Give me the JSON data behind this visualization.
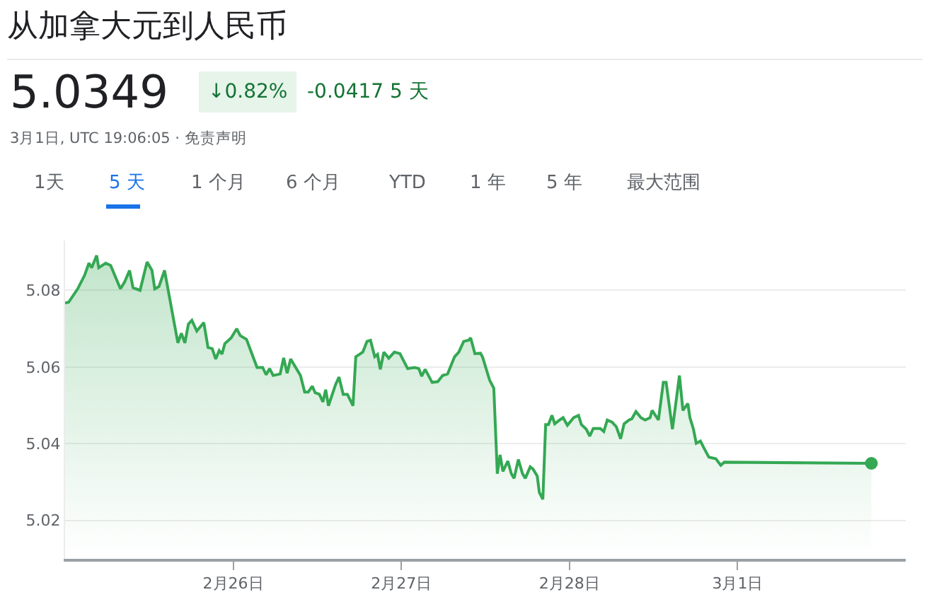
{
  "chart_data": {
    "type": "area",
    "title": "从加拿大元到人民币",
    "annotations": [
      "5.0349",
      "↓0.82%",
      "-0.0417 5 天",
      "3月1日, UTC 19:06:05 · 免责声明",
      "1天",
      "5 天",
      "1 个月",
      "6 个月",
      "YTD",
      "1 年",
      "5 年",
      "最大范围"
    ],
    "x": [
      "--02-25T00:00",
      "--02-25T00:30",
      "--02-25T01:48",
      "--02-25T02:48",
      "--02-25T03:24",
      "--02-25T03:48",
      "--02-25T04:30",
      "--02-25T04:48",
      "--02-25T05:48",
      "--02-25T06:30",
      "--02-25T07:54",
      "--02-25T08:30",
      "--02-25T09:12",
      "--02-25T09:42",
      "--02-25T10:42",
      "--02-25T11:42",
      "--02-25T12:24",
      "--02-25T12:48",
      "--02-25T13:24",
      "--02-25T14:12",
      "--02-25T16:06",
      "--02-25T16:36",
      "--02-25T17:06",
      "--02-25T17:36",
      "--02-25T18:06",
      "--02-25T18:48",
      "--02-25T19:48",
      "--02-25T20:24",
      "--02-25T21:00",
      "--02-25T21:30",
      "--02-25T22:00",
      "--02-25T22:24",
      "--02-25T22:48",
      "--02-25T23:42",
      "--02-26T00:30",
      "--02-26T01:00",
      "--02-26T01:54",
      "--02-26T03:24",
      "--02-26T04:12",
      "--02-26T04:42",
      "--02-26T05:12",
      "--02-26T05:42",
      "--02-26T06:42",
      "--02-26T07:12",
      "--02-26T07:42",
      "--02-26T08:12",
      "--02-26T09:36",
      "--02-26T10:12",
      "--02-26T10:42",
      "--02-26T11:18",
      "--02-26T11:42",
      "--02-26T12:18",
      "--02-26T12:48",
      "--02-26T13:12",
      "--02-26T13:36",
      "--02-26T14:36",
      "--02-26T15:06",
      "--02-26T15:42",
      "--02-26T16:18",
      "--02-26T17:06",
      "--02-26T17:30",
      "--02-26T18:30",
      "--02-26T19:06",
      "--02-26T19:36",
      "--02-26T20:12",
      "--02-26T20:36",
      "--02-26T21:00",
      "--02-26T21:30",
      "--02-26T22:12",
      "--02-26T23:00",
      "--02-26T23:48",
      "--02-27T00:54",
      "--02-27T01:54",
      "--02-27T02:30",
      "--02-27T02:54",
      "--02-27T03:24",
      "--02-27T04:24",
      "--02-27T05:12",
      "--02-27T05:54",
      "--02-27T06:36",
      "--02-27T07:36",
      "--02-27T08:12",
      "--02-27T08:54",
      "--02-27T09:36",
      "--02-27T09:54",
      "--02-27T10:30",
      "--02-27T11:18",
      "--02-27T11:36",
      "--02-27T12:36",
      "--02-27T13:12",
      "--02-27T13:42",
      "--02-27T14:06",
      "--02-27T14:30",
      "--02-27T15:12",
      "--02-27T15:42",
      "--02-27T16:06",
      "--02-27T16:42",
      "--02-27T17:18",
      "--02-27T17:42",
      "--02-27T18:24",
      "--02-27T18:48",
      "--02-27T19:24",
      "--02-27T19:42",
      "--02-27T20:12",
      "--02-27T20:36",
      "--02-27T21:00",
      "--02-27T21:30",
      "--02-27T21:54",
      "--02-27T22:36",
      "--02-27T23:06",
      "--02-27T23:42",
      "--02-28T00:36",
      "--02-28T01:18",
      "--02-28T01:42",
      "--02-28T02:24",
      "--02-28T02:54",
      "--02-28T03:24",
      "--02-28T04:24",
      "--02-28T04:54",
      "--02-28T05:24",
      "--02-28T06:06",
      "--02-28T06:42",
      "--02-28T07:18",
      "--02-28T07:48",
      "--02-28T08:30",
      "--02-28T08:54",
      "--02-28T09:30",
      "--02-28T10:12",
      "--02-28T10:48",
      "--02-28T11:30",
      "--02-28T11:48",
      "--02-28T12:42",
      "--02-28T13:24",
      "--02-28T13:48",
      "--02-28T14:42",
      "--02-28T15:42",
      "--02-28T16:12",
      "--02-28T16:54",
      "--02-28T17:12",
      "--02-28T17:42",
      "--02-28T18:06",
      "--02-28T18:42",
      "--02-28T19:12",
      "--02-28T19:54",
      "--02-28T20:54",
      "--02-28T21:36",
      "--02-28T22:06",
      "--03-01T19:06"
    ],
    "series": [
      {
        "color": "#34a853",
        "values": [
          5.0767,
          5.0769,
          5.0804,
          5.084,
          5.0871,
          5.0859,
          5.0891,
          5.0859,
          5.0871,
          5.0865,
          5.0804,
          5.0822,
          5.0852,
          5.0807,
          5.08,
          5.0874,
          5.0852,
          5.0804,
          5.081,
          5.0852,
          5.0663,
          5.0688,
          5.0663,
          5.0712,
          5.0722,
          5.0694,
          5.0716,
          5.0651,
          5.0648,
          5.0621,
          5.0643,
          5.0634,
          5.0661,
          5.0676,
          5.07,
          5.0682,
          5.0672,
          5.0599,
          5.0599,
          5.058,
          5.0596,
          5.0578,
          5.0582,
          5.0624,
          5.0584,
          5.0621,
          5.0578,
          5.0535,
          5.0535,
          5.055,
          5.0533,
          5.0529,
          5.0509,
          5.0541,
          5.0499,
          5.0554,
          5.0574,
          5.0529,
          5.0529,
          5.0499,
          5.0627,
          5.0639,
          5.0667,
          5.067,
          5.0627,
          5.0633,
          5.0594,
          5.0639,
          5.0623,
          5.0639,
          5.0635,
          5.0596,
          5.0599,
          5.0596,
          5.0576,
          5.0594,
          5.056,
          5.0562,
          5.0578,
          5.0582,
          5.0627,
          5.0639,
          5.0667,
          5.067,
          5.0676,
          5.0635,
          5.0636,
          5.0626,
          5.0566,
          5.0545,
          5.0322,
          5.0371,
          5.0328,
          5.0355,
          5.0322,
          5.031,
          5.0359,
          5.0322,
          5.031,
          5.034,
          5.0334,
          5.0316,
          5.0273,
          5.0255,
          5.045,
          5.045,
          5.0474,
          5.0452,
          5.0462,
          5.0468,
          5.0448,
          5.0468,
          5.0474,
          5.045,
          5.0438,
          5.042,
          5.044,
          5.044,
          5.0432,
          5.0462,
          5.0456,
          5.0444,
          5.0413,
          5.0452,
          5.0462,
          5.0465,
          5.0484,
          5.0468,
          5.0462,
          5.0468,
          5.0487,
          5.0462,
          5.056,
          5.056,
          5.0438,
          5.0578,
          5.0487,
          5.0505,
          5.0468,
          5.0438,
          5.0401,
          5.0407,
          5.0389,
          5.0365,
          5.0361,
          5.0344,
          5.0352,
          5.0349
        ]
      }
    ],
    "xlim": [
      "--02-25T00:00",
      "--03-02T00:00"
    ],
    "xticks": [
      {
        "value": "--02-26",
        "label": "2月26日"
      },
      {
        "value": "--02-27",
        "label": "2月27日"
      },
      {
        "value": "--02-28",
        "label": "2月28日"
      },
      {
        "value": "--03-01",
        "label": "3月1日"
      }
    ],
    "ylim": [
      5.01,
      5.093
    ],
    "yticks": [
      5.02,
      5.04,
      5.06,
      5.08
    ],
    "grid": "y",
    "legend": false
  }
}
